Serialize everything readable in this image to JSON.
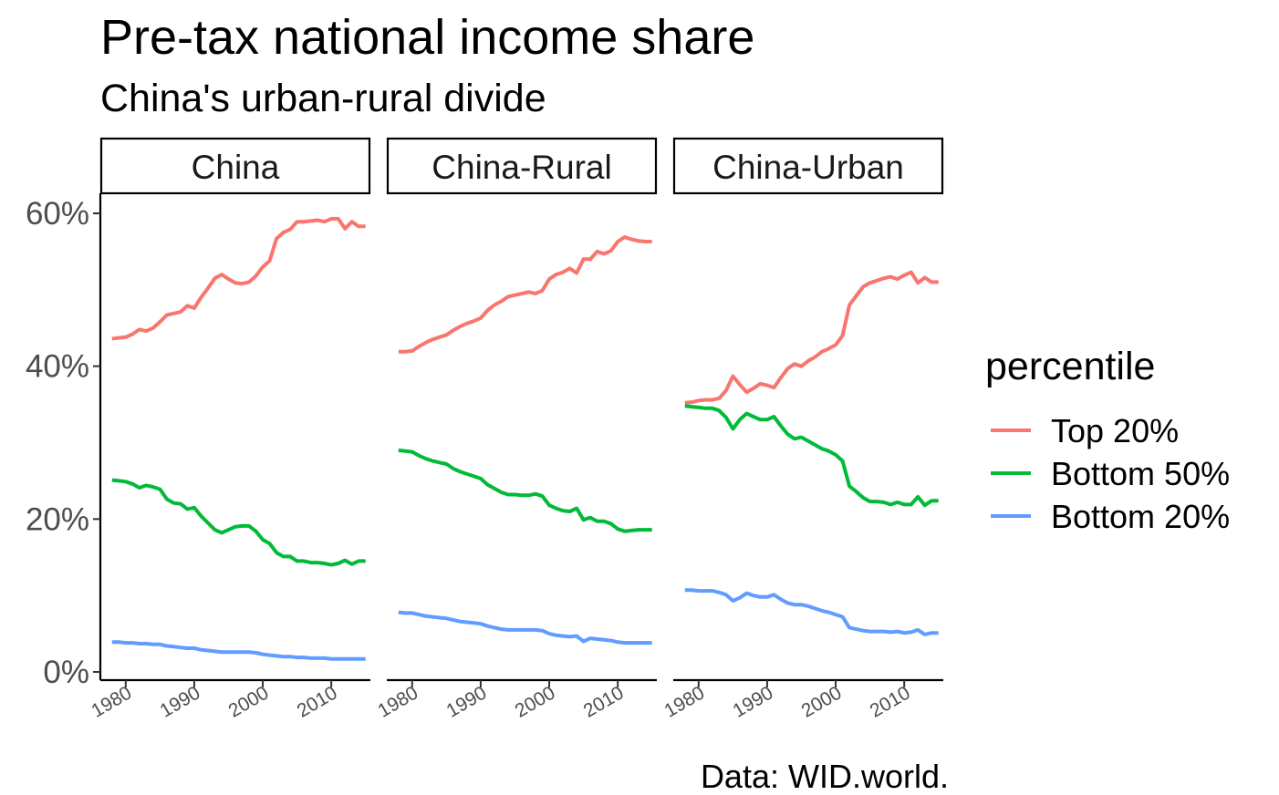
{
  "chart_data": {
    "type": "line",
    "title": "Pre-tax national income share",
    "subtitle": "China's urban-rural divide",
    "caption": "Data: WID.world.",
    "legend_title": "percentile",
    "legend_position": "right",
    "grid": false,
    "ylim": [
      0,
      0.6
    ],
    "yticks": [
      0,
      0.2,
      0.4,
      0.6
    ],
    "ytick_labels": [
      "0%",
      "20%",
      "40%",
      "60%"
    ],
    "xlim": [
      1976.3,
      2015.7
    ],
    "xticks": [
      1980,
      1990,
      2000,
      2010
    ],
    "xtick_labels": [
      "1980",
      "1990",
      "2000",
      "2010"
    ],
    "x": [
      1978,
      1979,
      1980,
      1981,
      1982,
      1983,
      1984,
      1985,
      1986,
      1987,
      1988,
      1989,
      1990,
      1991,
      1992,
      1993,
      1994,
      1995,
      1996,
      1997,
      1998,
      1999,
      2000,
      2001,
      2002,
      2003,
      2004,
      2005,
      2006,
      2007,
      2008,
      2009,
      2010,
      2011,
      2012,
      2013,
      2014,
      2015
    ],
    "series_meta": [
      {
        "key": "top20",
        "name": "Top 20%",
        "color": "#f8766d"
      },
      {
        "key": "bottom50",
        "name": "Bottom 50%",
        "color": "#00ba38"
      },
      {
        "key": "bottom20",
        "name": "Bottom 20%",
        "color": "#619cff"
      }
    ],
    "panels": [
      {
        "name": "China",
        "series": {
          "top20": [
            0.436,
            0.437,
            0.438,
            0.442,
            0.448,
            0.446,
            0.45,
            0.458,
            0.467,
            0.469,
            0.471,
            0.479,
            0.476,
            0.49,
            0.502,
            0.515,
            0.52,
            0.514,
            0.509,
            0.508,
            0.51,
            0.518,
            0.53,
            0.538,
            0.567,
            0.575,
            0.579,
            0.589,
            0.589,
            0.59,
            0.591,
            0.589,
            0.593,
            0.593,
            0.58,
            0.589,
            0.583,
            0.583
          ],
          "bottom50": [
            0.251,
            0.25,
            0.249,
            0.246,
            0.241,
            0.244,
            0.242,
            0.239,
            0.226,
            0.221,
            0.22,
            0.213,
            0.215,
            0.204,
            0.195,
            0.186,
            0.182,
            0.186,
            0.19,
            0.191,
            0.191,
            0.184,
            0.173,
            0.168,
            0.156,
            0.151,
            0.151,
            0.145,
            0.145,
            0.143,
            0.143,
            0.142,
            0.14,
            0.142,
            0.146,
            0.141,
            0.145,
            0.145
          ],
          "bottom20": [
            0.039,
            0.039,
            0.038,
            0.038,
            0.037,
            0.037,
            0.036,
            0.036,
            0.034,
            0.033,
            0.032,
            0.031,
            0.031,
            0.029,
            0.028,
            0.027,
            0.026,
            0.026,
            0.026,
            0.026,
            0.026,
            0.025,
            0.023,
            0.022,
            0.021,
            0.02,
            0.02,
            0.019,
            0.019,
            0.018,
            0.018,
            0.018,
            0.017,
            0.017,
            0.017,
            0.017,
            0.017,
            0.017
          ]
        }
      },
      {
        "name": "China-Rural",
        "series": {
          "top20": [
            0.419,
            0.419,
            0.42,
            0.426,
            0.431,
            0.435,
            0.438,
            0.441,
            0.447,
            0.452,
            0.456,
            0.459,
            0.463,
            0.473,
            0.48,
            0.485,
            0.491,
            0.493,
            0.495,
            0.497,
            0.495,
            0.499,
            0.514,
            0.52,
            0.523,
            0.528,
            0.522,
            0.54,
            0.54,
            0.55,
            0.547,
            0.551,
            0.563,
            0.569,
            0.566,
            0.564,
            0.563,
            0.563
          ],
          "bottom50": [
            0.29,
            0.289,
            0.288,
            0.283,
            0.279,
            0.276,
            0.274,
            0.272,
            0.266,
            0.262,
            0.259,
            0.256,
            0.253,
            0.245,
            0.24,
            0.235,
            0.232,
            0.232,
            0.231,
            0.231,
            0.233,
            0.23,
            0.218,
            0.214,
            0.211,
            0.21,
            0.214,
            0.199,
            0.202,
            0.197,
            0.197,
            0.194,
            0.187,
            0.184,
            0.185,
            0.186,
            0.186,
            0.186
          ],
          "bottom20": [
            0.078,
            0.077,
            0.077,
            0.075,
            0.073,
            0.072,
            0.071,
            0.07,
            0.068,
            0.066,
            0.065,
            0.064,
            0.063,
            0.06,
            0.058,
            0.056,
            0.055,
            0.055,
            0.055,
            0.055,
            0.055,
            0.054,
            0.05,
            0.048,
            0.047,
            0.046,
            0.047,
            0.04,
            0.044,
            0.043,
            0.042,
            0.041,
            0.039,
            0.038,
            0.038,
            0.038,
            0.038,
            0.038
          ]
        }
      },
      {
        "name": "China-Urban",
        "series": {
          "top20": [
            0.352,
            0.353,
            0.355,
            0.356,
            0.356,
            0.358,
            0.368,
            0.387,
            0.376,
            0.366,
            0.371,
            0.377,
            0.375,
            0.372,
            0.385,
            0.397,
            0.403,
            0.4,
            0.407,
            0.412,
            0.419,
            0.423,
            0.428,
            0.44,
            0.48,
            0.492,
            0.504,
            0.509,
            0.512,
            0.515,
            0.517,
            0.514,
            0.519,
            0.523,
            0.509,
            0.516,
            0.51,
            0.51
          ],
          "bottom50": [
            0.348,
            0.347,
            0.346,
            0.345,
            0.345,
            0.342,
            0.333,
            0.318,
            0.33,
            0.338,
            0.334,
            0.33,
            0.33,
            0.334,
            0.322,
            0.311,
            0.305,
            0.307,
            0.302,
            0.297,
            0.292,
            0.289,
            0.284,
            0.276,
            0.243,
            0.236,
            0.228,
            0.223,
            0.223,
            0.222,
            0.219,
            0.222,
            0.219,
            0.219,
            0.229,
            0.218,
            0.224,
            0.224
          ],
          "bottom20": [
            0.107,
            0.107,
            0.106,
            0.106,
            0.106,
            0.104,
            0.101,
            0.093,
            0.097,
            0.103,
            0.1,
            0.098,
            0.098,
            0.101,
            0.095,
            0.09,
            0.088,
            0.088,
            0.086,
            0.083,
            0.08,
            0.078,
            0.075,
            0.072,
            0.058,
            0.056,
            0.054,
            0.053,
            0.053,
            0.053,
            0.052,
            0.053,
            0.051,
            0.052,
            0.055,
            0.049,
            0.051,
            0.051
          ]
        }
      }
    ]
  }
}
